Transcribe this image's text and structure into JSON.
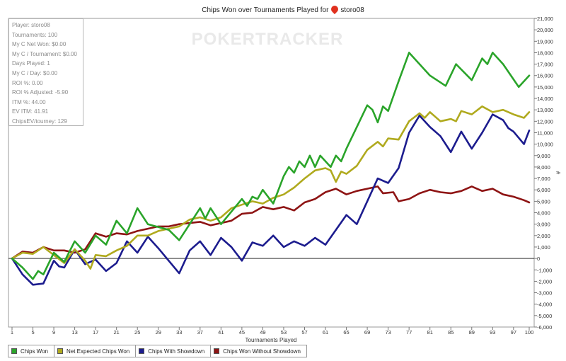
{
  "header": {
    "title_prefix": "Chips Won over Tournaments Played for",
    "player_name": "storo08"
  },
  "watermark": "POKERTRACKER",
  "stats": [
    "Player: storo08",
    "Tournaments: 100",
    "My C Net Won: $0.00",
    "My C / Tournament: $0.00",
    "Days Played: 1",
    "My C / Day: $0.00",
    "ROI %: 0.00",
    "ROI % Adjusted: -5.90",
    "ITM %: 44.00",
    "EV ITM: 41.91",
    "ChipsEV/tourney: 129"
  ],
  "chart_data": {
    "type": "line",
    "title": "Chips Won over Tournaments Played for storo08",
    "xlabel": "Tournaments Played",
    "ylabel": "#",
    "xlim": [
      1,
      100
    ],
    "ylim": [
      -6000,
      21000
    ],
    "x_ticks": [
      1,
      5,
      9,
      13,
      17,
      21,
      25,
      29,
      33,
      37,
      41,
      45,
      49,
      53,
      57,
      61,
      65,
      69,
      73,
      77,
      81,
      85,
      89,
      93,
      97,
      100
    ],
    "y_ticks": [
      -6000,
      -5000,
      -4000,
      -3000,
      -2000,
      -1000,
      0,
      1000,
      2000,
      3000,
      4000,
      5000,
      6000,
      7000,
      8000,
      9000,
      10000,
      11000,
      12000,
      13000,
      14000,
      15000,
      16000,
      17000,
      18000,
      19000,
      20000,
      21000
    ],
    "y_tick_labels": [
      "-6,000",
      "-5,000",
      "-4,000",
      "-3,000",
      "-2,000",
      "-1,000",
      "0",
      "1,000",
      "2,000",
      "3,000",
      "4,000",
      "5,000",
      "6,000",
      "7,000",
      "8,000",
      "9,000",
      "10,000",
      "11,000",
      "12,000",
      "13,000",
      "14,000",
      "15,000",
      "16,000",
      "17,000",
      "18,000",
      "19,000",
      "20,000",
      "21,000"
    ],
    "grid": false,
    "legend_position": "bottom-left",
    "series": [
      {
        "name": "Chips Won",
        "color": "#2aa42a",
        "points": [
          [
            1,
            0
          ],
          [
            3,
            -800
          ],
          [
            5,
            -1800
          ],
          [
            6,
            -1100
          ],
          [
            7,
            -1400
          ],
          [
            9,
            500
          ],
          [
            11,
            -300
          ],
          [
            13,
            1500
          ],
          [
            15,
            500
          ],
          [
            17,
            2000
          ],
          [
            19,
            1200
          ],
          [
            21,
            3300
          ],
          [
            23,
            2200
          ],
          [
            25,
            4400
          ],
          [
            27,
            3000
          ],
          [
            31,
            2500
          ],
          [
            33,
            1600
          ],
          [
            37,
            4400
          ],
          [
            38,
            3500
          ],
          [
            39,
            4400
          ],
          [
            41,
            3000
          ],
          [
            45,
            5200
          ],
          [
            46,
            4600
          ],
          [
            47,
            5400
          ],
          [
            48,
            5200
          ],
          [
            49,
            6000
          ],
          [
            51,
            4800
          ],
          [
            53,
            7200
          ],
          [
            54,
            8000
          ],
          [
            55,
            7500
          ],
          [
            56,
            8500
          ],
          [
            57,
            8000
          ],
          [
            58,
            9000
          ],
          [
            59,
            8000
          ],
          [
            60,
            9000
          ],
          [
            62,
            8000
          ],
          [
            63,
            9000
          ],
          [
            64,
            8500
          ],
          [
            65,
            9600
          ],
          [
            69,
            13400
          ],
          [
            70,
            13000
          ],
          [
            71,
            11900
          ],
          [
            72,
            13300
          ],
          [
            73,
            12900
          ],
          [
            75,
            15500
          ],
          [
            77,
            18000
          ],
          [
            81,
            16000
          ],
          [
            84,
            15100
          ],
          [
            86,
            17000
          ],
          [
            89,
            15600
          ],
          [
            91,
            17500
          ],
          [
            92,
            17000
          ],
          [
            93,
            18000
          ],
          [
            95,
            17000
          ],
          [
            98,
            15000
          ],
          [
            100,
            16000
          ]
        ]
      },
      {
        "name": "Net Expected Chips Won",
        "color": "#b0aa1e",
        "points": [
          [
            1,
            0
          ],
          [
            3,
            500
          ],
          [
            5,
            400
          ],
          [
            7,
            1000
          ],
          [
            9,
            300
          ],
          [
            11,
            -400
          ],
          [
            13,
            800
          ],
          [
            15,
            -200
          ],
          [
            16,
            -900
          ],
          [
            17,
            300
          ],
          [
            19,
            200
          ],
          [
            21,
            700
          ],
          [
            23,
            1100
          ],
          [
            25,
            2000
          ],
          [
            27,
            2000
          ],
          [
            29,
            2400
          ],
          [
            33,
            2800
          ],
          [
            35,
            3400
          ],
          [
            37,
            3600
          ],
          [
            39,
            3300
          ],
          [
            41,
            3600
          ],
          [
            43,
            4400
          ],
          [
            45,
            4700
          ],
          [
            47,
            5000
          ],
          [
            49,
            4800
          ],
          [
            51,
            5300
          ],
          [
            53,
            5600
          ],
          [
            55,
            6200
          ],
          [
            57,
            7000
          ],
          [
            59,
            7700
          ],
          [
            61,
            7900
          ],
          [
            62,
            7700
          ],
          [
            63,
            6700
          ],
          [
            64,
            7600
          ],
          [
            65,
            7400
          ],
          [
            67,
            8100
          ],
          [
            69,
            9500
          ],
          [
            71,
            10200
          ],
          [
            72,
            9800
          ],
          [
            73,
            10500
          ],
          [
            75,
            10400
          ],
          [
            77,
            12000
          ],
          [
            79,
            12700
          ],
          [
            80,
            12300
          ],
          [
            81,
            12800
          ],
          [
            83,
            12000
          ],
          [
            85,
            12200
          ],
          [
            86,
            12000
          ],
          [
            87,
            12900
          ],
          [
            89,
            12600
          ],
          [
            91,
            13300
          ],
          [
            93,
            12800
          ],
          [
            95,
            13000
          ],
          [
            97,
            12600
          ],
          [
            99,
            12300
          ],
          [
            100,
            12800
          ]
        ]
      },
      {
        "name": "Chips With Showdown",
        "color": "#1c1c8e",
        "points": [
          [
            1,
            0
          ],
          [
            3,
            -1400
          ],
          [
            5,
            -2300
          ],
          [
            7,
            -2200
          ],
          [
            9,
            -200
          ],
          [
            10,
            -700
          ],
          [
            11,
            -800
          ],
          [
            13,
            800
          ],
          [
            15,
            -500
          ],
          [
            17,
            -100
          ],
          [
            19,
            -1100
          ],
          [
            21,
            -400
          ],
          [
            23,
            1500
          ],
          [
            25,
            500
          ],
          [
            27,
            1900
          ],
          [
            29,
            900
          ],
          [
            33,
            -1300
          ],
          [
            35,
            700
          ],
          [
            37,
            1500
          ],
          [
            39,
            300
          ],
          [
            41,
            1800
          ],
          [
            43,
            1000
          ],
          [
            45,
            -200
          ],
          [
            47,
            1400
          ],
          [
            49,
            1100
          ],
          [
            51,
            2000
          ],
          [
            53,
            1000
          ],
          [
            55,
            1500
          ],
          [
            57,
            1100
          ],
          [
            59,
            1800
          ],
          [
            61,
            1200
          ],
          [
            63,
            2500
          ],
          [
            65,
            3800
          ],
          [
            67,
            3000
          ],
          [
            69,
            5000
          ],
          [
            71,
            7000
          ],
          [
            73,
            6600
          ],
          [
            75,
            7900
          ],
          [
            77,
            11000
          ],
          [
            79,
            12500
          ],
          [
            81,
            11500
          ],
          [
            83,
            10700
          ],
          [
            85,
            9300
          ],
          [
            87,
            11100
          ],
          [
            89,
            9600
          ],
          [
            91,
            11000
          ],
          [
            93,
            12600
          ],
          [
            95,
            12100
          ],
          [
            96,
            11400
          ],
          [
            97,
            11100
          ],
          [
            99,
            10000
          ],
          [
            100,
            11200
          ]
        ]
      },
      {
        "name": "Chips Won Without Showdown",
        "color": "#8e1414",
        "points": [
          [
            1,
            0
          ],
          [
            3,
            600
          ],
          [
            5,
            500
          ],
          [
            7,
            1000
          ],
          [
            9,
            700
          ],
          [
            11,
            700
          ],
          [
            13,
            500
          ],
          [
            15,
            800
          ],
          [
            17,
            2200
          ],
          [
            19,
            1900
          ],
          [
            21,
            2200
          ],
          [
            23,
            2100
          ],
          [
            25,
            2400
          ],
          [
            27,
            2600
          ],
          [
            29,
            2800
          ],
          [
            31,
            2800
          ],
          [
            33,
            3000
          ],
          [
            35,
            3100
          ],
          [
            37,
            3200
          ],
          [
            39,
            2900
          ],
          [
            41,
            3100
          ],
          [
            43,
            3300
          ],
          [
            45,
            3900
          ],
          [
            47,
            4000
          ],
          [
            49,
            4500
          ],
          [
            51,
            4300
          ],
          [
            53,
            4500
          ],
          [
            55,
            4200
          ],
          [
            57,
            4900
          ],
          [
            59,
            5200
          ],
          [
            61,
            5800
          ],
          [
            63,
            6100
          ],
          [
            65,
            5600
          ],
          [
            67,
            5900
          ],
          [
            69,
            6100
          ],
          [
            71,
            6300
          ],
          [
            72,
            5700
          ],
          [
            74,
            5800
          ],
          [
            75,
            5000
          ],
          [
            77,
            5200
          ],
          [
            79,
            5700
          ],
          [
            81,
            6000
          ],
          [
            83,
            5800
          ],
          [
            85,
            5700
          ],
          [
            87,
            5900
          ],
          [
            89,
            6300
          ],
          [
            91,
            5900
          ],
          [
            93,
            6100
          ],
          [
            95,
            5600
          ],
          [
            97,
            5400
          ],
          [
            99,
            5100
          ],
          [
            100,
            4900
          ]
        ]
      }
    ]
  }
}
